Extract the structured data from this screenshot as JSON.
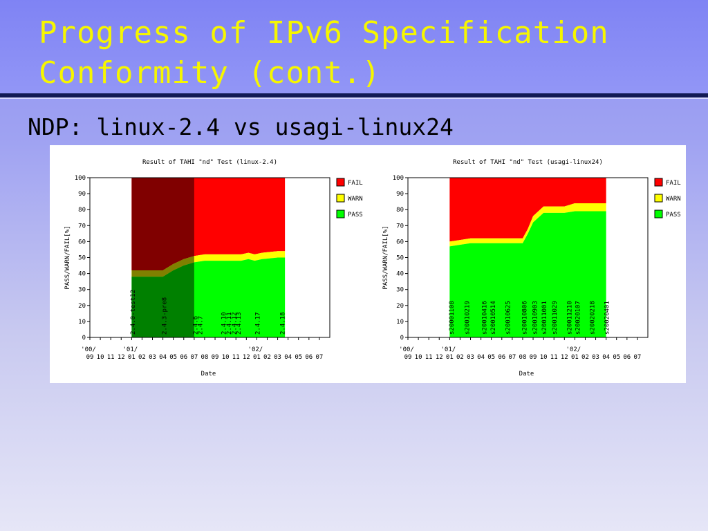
{
  "slide": {
    "title_line1": "Progress of IPv6 Specification",
    "title_line2": "Conformity (cont.)",
    "subtitle": "NDP: linux-2.4 vs usagi-linux24"
  },
  "chart_data": [
    {
      "type": "area",
      "stacked": true,
      "title": "Result of TAHI \"nd\" Test (linux-2.4)",
      "xlabel": "Date",
      "ylabel": "PASS/WARN/FAIL[%]",
      "ylim": [
        0,
        100
      ],
      "yticks": [
        0,
        10,
        20,
        30,
        40,
        50,
        60,
        70,
        80,
        90,
        100
      ],
      "x_months": [
        "'00/09",
        "'00/10",
        "'00/11",
        "'00/12",
        "'01/01",
        "'01/02",
        "'01/03",
        "'01/04",
        "'01/05",
        "'01/06",
        "'01/07",
        "'01/08",
        "'01/09",
        "'01/10",
        "'01/11",
        "'01/12",
        "'02/01",
        "'02/02",
        "'02/03",
        "'02/04",
        "'02/05",
        "'02/06",
        "'02/07"
      ],
      "xtick_labels": [
        "09",
        "10",
        "11",
        "12",
        "01",
        "02",
        "03",
        "04",
        "05",
        "06",
        "07",
        "08",
        "09",
        "10",
        "11",
        "12",
        "01",
        "02",
        "03",
        "04",
        "05",
        "06",
        "07"
      ],
      "xtick_year_labels": [
        {
          "label": "'00/",
          "month": "'00/09"
        },
        {
          "label": "'01/",
          "month": "'01/01"
        },
        {
          "label": "'02/",
          "month": "'02/01"
        }
      ],
      "legend": [
        "FAIL",
        "WARN",
        "PASS"
      ],
      "legend_position": "right",
      "colors": {
        "pass": "#00ff00",
        "warn": "#ffff00",
        "fail": "#ff0000"
      },
      "shaded_range": {
        "from": "'01/01",
        "to": "'01/07"
      },
      "shaded_colors": {
        "pass": "#008000",
        "warn": "#808000",
        "fail": "#800000"
      },
      "x": [
        4.0,
        5.0,
        7.0,
        8.0,
        9.0,
        10.0,
        11.0,
        12.3,
        13.5,
        14.5,
        15.2,
        15.8,
        16.5,
        18.0,
        18.7
      ],
      "pass": [
        38,
        38,
        38,
        42,
        45,
        47,
        48,
        48,
        48,
        48,
        49,
        48,
        49,
        50,
        50
      ],
      "warn": [
        4,
        4,
        4,
        4,
        4,
        4,
        4,
        4,
        4,
        4,
        4,
        4,
        4,
        4,
        4
      ],
      "release_labels": [
        {
          "label": "2.4.0-test12",
          "x": 4.05
        },
        {
          "label": "2.4.3-pre8",
          "x": 7.05
        },
        {
          "label": "2.4.6",
          "x": 10.05
        },
        {
          "label": "2.4.7",
          "x": 10.5
        },
        {
          "label": "2.4.10",
          "x": 12.75
        },
        {
          "label": "2.4.11",
          "x": 13.25
        },
        {
          "label": "2.4.12",
          "x": 13.75
        },
        {
          "label": "2.4.13",
          "x": 14.2
        },
        {
          "label": "2.4.17",
          "x": 16.0
        },
        {
          "label": "2.4.18",
          "x": 18.4
        }
      ]
    },
    {
      "type": "area",
      "stacked": true,
      "title": "Result of TAHI \"nd\" Test (usagi-linux24)",
      "xlabel": "Date",
      "ylabel": "PASS/WARN/FAIL[%]",
      "ylim": [
        0,
        100
      ],
      "yticks": [
        0,
        10,
        20,
        30,
        40,
        50,
        60,
        70,
        80,
        90,
        100
      ],
      "x_months": [
        "'00/09",
        "'00/10",
        "'00/11",
        "'00/12",
        "'01/01",
        "'01/02",
        "'01/03",
        "'01/04",
        "'01/05",
        "'01/06",
        "'01/07",
        "'01/08",
        "'01/09",
        "'01/10",
        "'01/11",
        "'01/12",
        "'02/01",
        "'02/02",
        "'02/03",
        "'02/04",
        "'02/05",
        "'02/06",
        "'02/07"
      ],
      "xtick_labels": [
        "09",
        "10",
        "11",
        "12",
        "01",
        "02",
        "03",
        "04",
        "05",
        "06",
        "07",
        "08",
        "09",
        "10",
        "11",
        "12",
        "01",
        "02",
        "03",
        "04",
        "05",
        "06",
        "07"
      ],
      "xtick_year_labels": [
        {
          "label": "'00/",
          "month": "'00/09"
        },
        {
          "label": "'01/",
          "month": "'01/01"
        },
        {
          "label": "'02/",
          "month": "'02/01"
        }
      ],
      "legend": [
        "FAIL",
        "WARN",
        "PASS"
      ],
      "legend_position": "right",
      "colors": {
        "pass": "#00ff00",
        "warn": "#ffff00",
        "fail": "#ff0000"
      },
      "x": [
        4.0,
        5.0,
        6.0,
        7.0,
        8.0,
        9.0,
        10.0,
        11.0,
        11.5,
        12.0,
        13.0,
        14.0,
        15.0,
        16.0,
        17.0,
        18.0,
        19.0
      ],
      "pass": [
        57,
        58,
        59,
        59,
        59,
        59,
        59,
        59,
        65,
        72,
        78,
        78,
        78,
        79,
        79,
        79,
        79
      ],
      "warn": [
        3,
        3,
        3,
        3,
        3,
        3,
        3,
        3,
        3,
        4,
        4,
        4,
        4,
        5,
        5,
        5,
        5
      ],
      "release_labels": [
        {
          "label": "s20001108",
          "x": 4.1
        },
        {
          "label": "s20010219",
          "x": 5.6
        },
        {
          "label": "s20010416",
          "x": 7.25
        },
        {
          "label": "s20010514",
          "x": 8.1
        },
        {
          "label": "s20010625",
          "x": 9.5
        },
        {
          "label": "s20010806",
          "x": 11.1
        },
        {
          "label": "s20010903",
          "x": 12.1
        },
        {
          "label": "s20011001",
          "x": 13.0
        },
        {
          "label": "s20011029",
          "x": 14.0
        },
        {
          "label": "s20011210",
          "x": 15.4
        },
        {
          "label": "s20020107",
          "x": 16.2
        },
        {
          "label": "s20020218",
          "x": 17.6
        },
        {
          "label": "s20020401",
          "x": 19.0
        }
      ]
    }
  ]
}
